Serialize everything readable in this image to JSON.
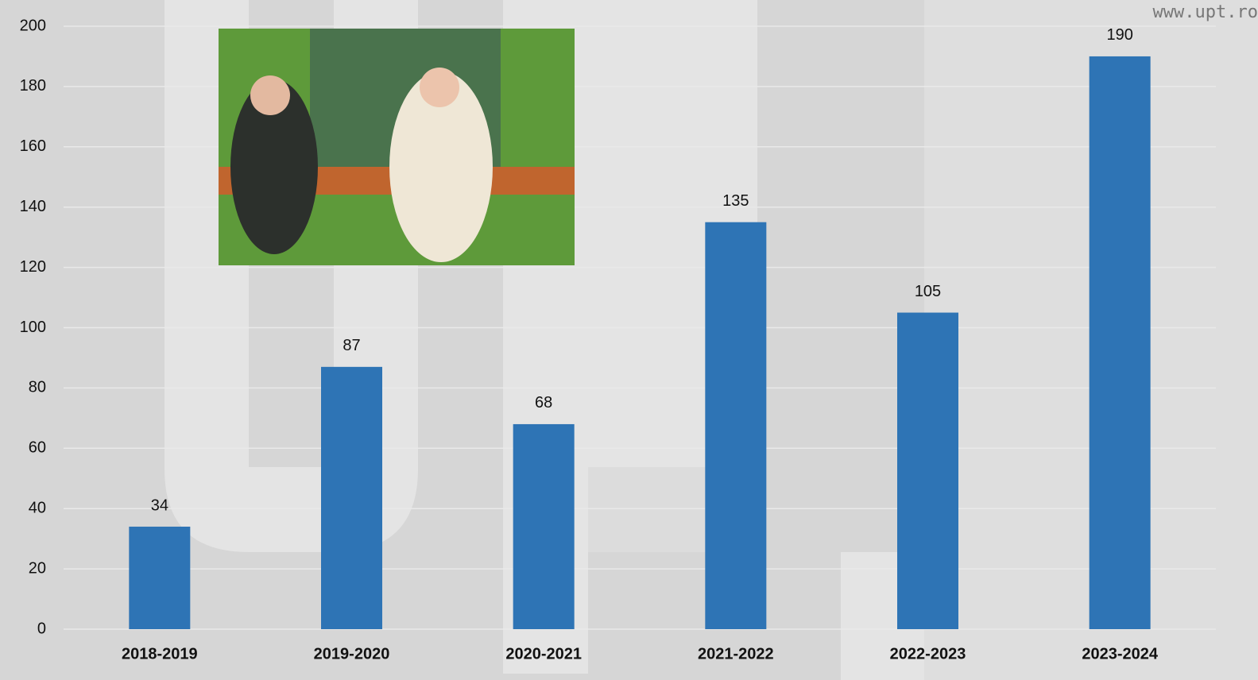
{
  "chart_data": {
    "type": "bar",
    "watermark": "www.upt.ro",
    "categories": [
      "2018-2019",
      "2019-2020",
      "2020-2021",
      "2021-2022",
      "2022-2023",
      "2023-2024"
    ],
    "values": [
      34,
      87,
      68,
      135,
      105,
      190
    ],
    "color": "#2e74b5",
    "ylim": [
      0,
      200
    ],
    "yticks": [
      0,
      20,
      40,
      60,
      80,
      100,
      120,
      140,
      160,
      180,
      200
    ],
    "grid": true
  }
}
